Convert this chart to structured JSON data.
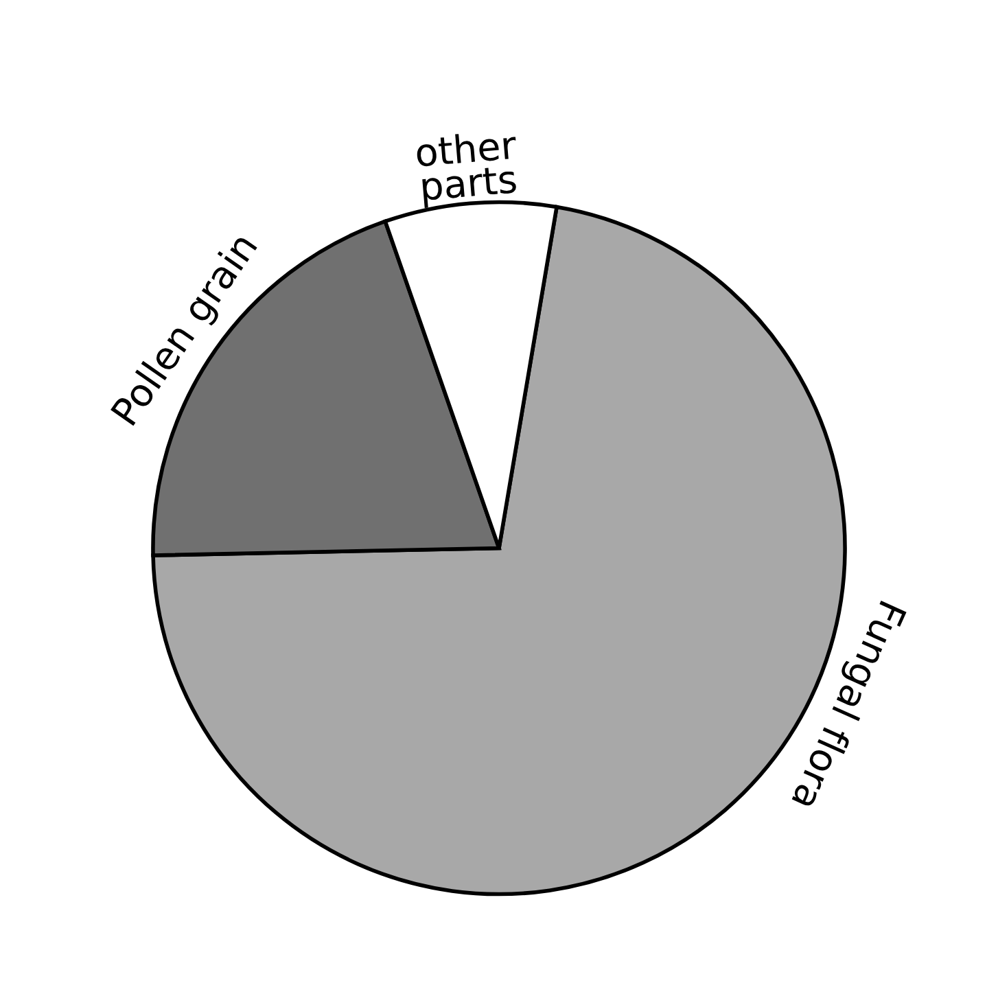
{
  "chart_data": {
    "type": "pie",
    "categories": [
      "Fungal flora",
      "Pollen grain",
      "other\nparts"
    ],
    "values": [
      72,
      20,
      8
    ],
    "colors": [
      "#a8a8a8",
      "#707070",
      "#ffffff"
    ]
  }
}
